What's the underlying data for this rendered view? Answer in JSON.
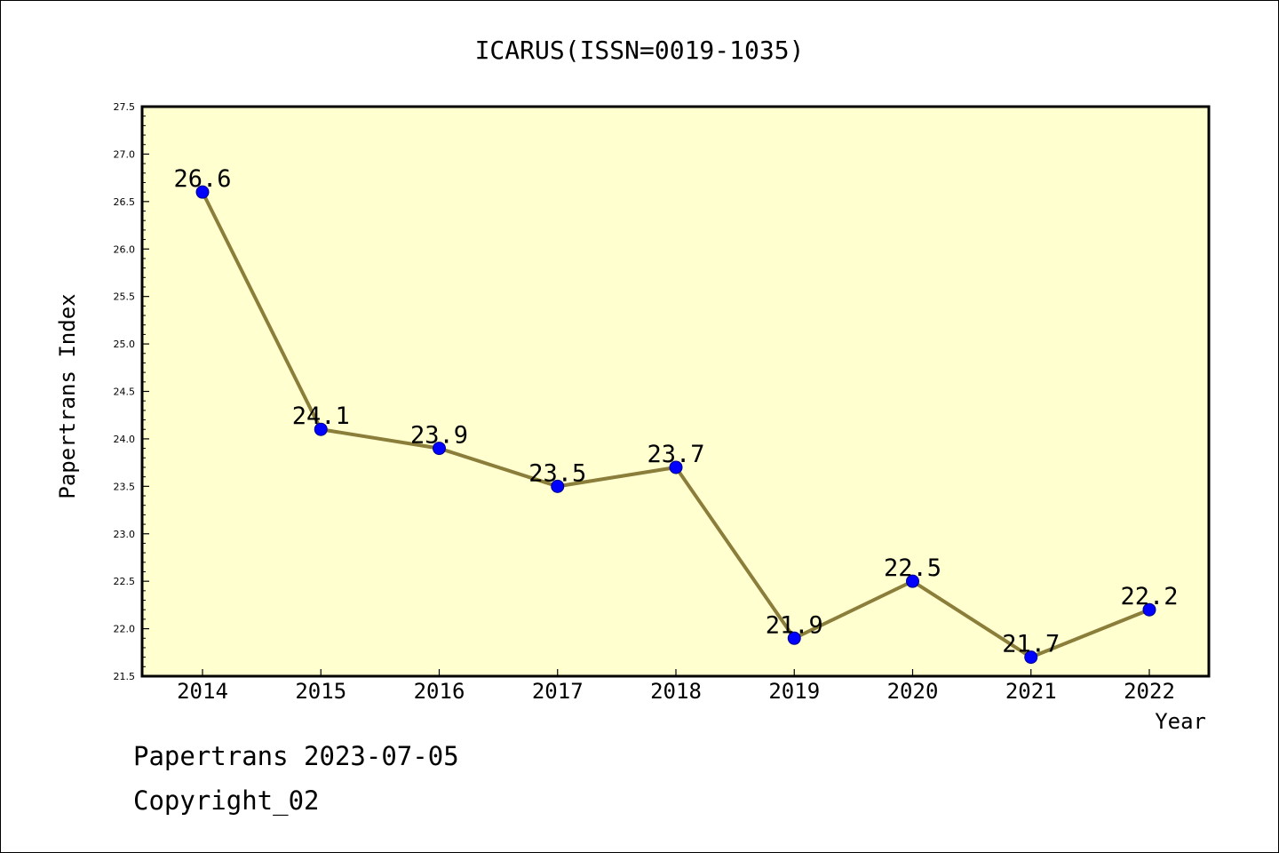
{
  "chart_data": {
    "type": "line",
    "title": "ICARUS(ISSN=0019-1035)",
    "xlabel": "Year",
    "ylabel": "Papertrans Index",
    "categories": [
      "2014",
      "2015",
      "2016",
      "2017",
      "2018",
      "2019",
      "2020",
      "2021",
      "2022"
    ],
    "values": [
      26.6,
      24.1,
      23.9,
      23.5,
      23.7,
      21.9,
      22.5,
      21.7,
      22.2
    ],
    "data_labels": [
      "26.6",
      "24.1",
      "23.9",
      "23.5",
      "23.7",
      "21.9",
      "22.5",
      "21.7",
      "22.2"
    ],
    "ylim": [
      21.5,
      27.5
    ],
    "yticks": [
      "21.5",
      "22.0",
      "22.5",
      "23.0",
      "23.5",
      "24.0",
      "24.5",
      "25.0",
      "25.5",
      "26.0",
      "26.5",
      "27.0",
      "27.5"
    ],
    "grid": false,
    "colors": {
      "plot_background": "#ffffd0",
      "line": "#8b7d3a",
      "marker": "#0000ff"
    }
  },
  "footer": {
    "line1": "Papertrans 2023-07-05",
    "line2": "Copyright_02"
  }
}
